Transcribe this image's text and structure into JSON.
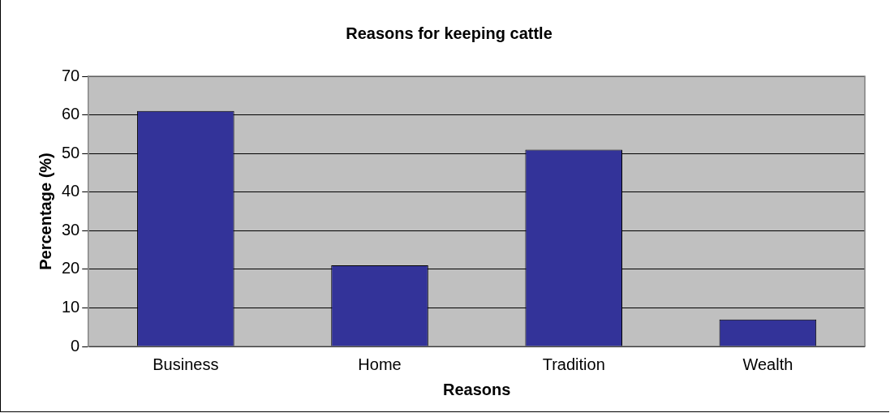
{
  "chart_data": {
    "type": "bar",
    "title": "Reasons for keeping cattle",
    "xlabel": "Reasons",
    "ylabel": "Percentage (%)",
    "categories": [
      "Business",
      "Home",
      "Tradition",
      "Wealth"
    ],
    "values": [
      61,
      21,
      51,
      7
    ],
    "color": "#333399",
    "ylim": [
      0,
      70
    ],
    "yticks": [
      0,
      10,
      20,
      30,
      40,
      50,
      60,
      70
    ],
    "grid": "y",
    "legend": false
  }
}
